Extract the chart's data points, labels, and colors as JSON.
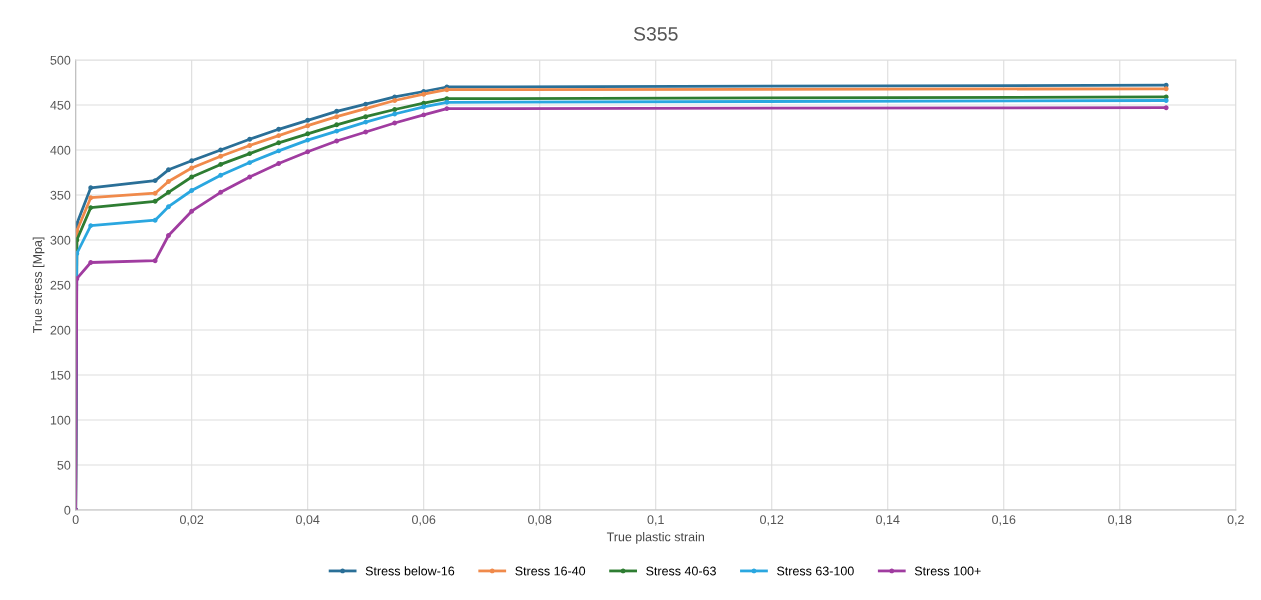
{
  "chart_data": {
    "type": "line",
    "title": "S355",
    "xlabel": "True plastic strain",
    "ylabel": "True stress [Mpa]",
    "x": [
      0,
      0.0002,
      0.0026,
      0.0137,
      0.016,
      0.02,
      0.025,
      0.03,
      0.035,
      0.04,
      0.045,
      0.05,
      0.055,
      0.06,
      0.064,
      0.188
    ],
    "series": [
      {
        "name": "Stress below-16",
        "color": "#2a6f97",
        "values": [
          0,
          318,
          358,
          366,
          378,
          388,
          400,
          412,
          423,
          433,
          443,
          451,
          459,
          465,
          470,
          472
        ]
      },
      {
        "name": "Stress 16-40",
        "color": "#f08a4b",
        "values": [
          0,
          310,
          347,
          352,
          365,
          380,
          393,
          405,
          416,
          427,
          437,
          446,
          455,
          462,
          467,
          468
        ]
      },
      {
        "name": "Stress 40-63",
        "color": "#2e7d32",
        "values": [
          0,
          300,
          336,
          343,
          353,
          370,
          384,
          396,
          408,
          418,
          428,
          437,
          445,
          452,
          457,
          459
        ]
      },
      {
        "name": "Stress 63-100",
        "color": "#2aa7e0",
        "values": [
          0,
          285,
          316,
          322,
          337,
          355,
          372,
          386,
          399,
          411,
          421,
          431,
          440,
          448,
          453,
          455
        ]
      },
      {
        "name": "Stress 100+",
        "color": "#a03ca0",
        "values": [
          0,
          257,
          275,
          277,
          305,
          332,
          353,
          370,
          385,
          398,
          410,
          420,
          430,
          439,
          446,
          447
        ]
      }
    ],
    "xlim": [
      0,
      0.2
    ],
    "xticks": [
      0,
      {
        "value": 0.02,
        "label": "0,02"
      },
      {
        "value": 0.04,
        "label": "0,04"
      },
      {
        "value": 0.06,
        "label": "0,06"
      },
      {
        "value": 0.08,
        "label": "0,08"
      },
      {
        "value": 0.1,
        "label": "0,1"
      },
      {
        "value": 0.12,
        "label": "0,12"
      },
      {
        "value": 0.14,
        "label": "0,14"
      },
      {
        "value": 0.16,
        "label": "0,16"
      },
      {
        "value": 0.18,
        "label": "0,18"
      },
      {
        "value": 0.2,
        "label": "0,2"
      }
    ],
    "ylim": [
      0,
      500
    ],
    "yticks": [
      0,
      50,
      100,
      150,
      200,
      250,
      300,
      350,
      400,
      450,
      500
    ],
    "grid": true,
    "legend": "bottom",
    "marker": "circle",
    "line_style": "solid"
  }
}
